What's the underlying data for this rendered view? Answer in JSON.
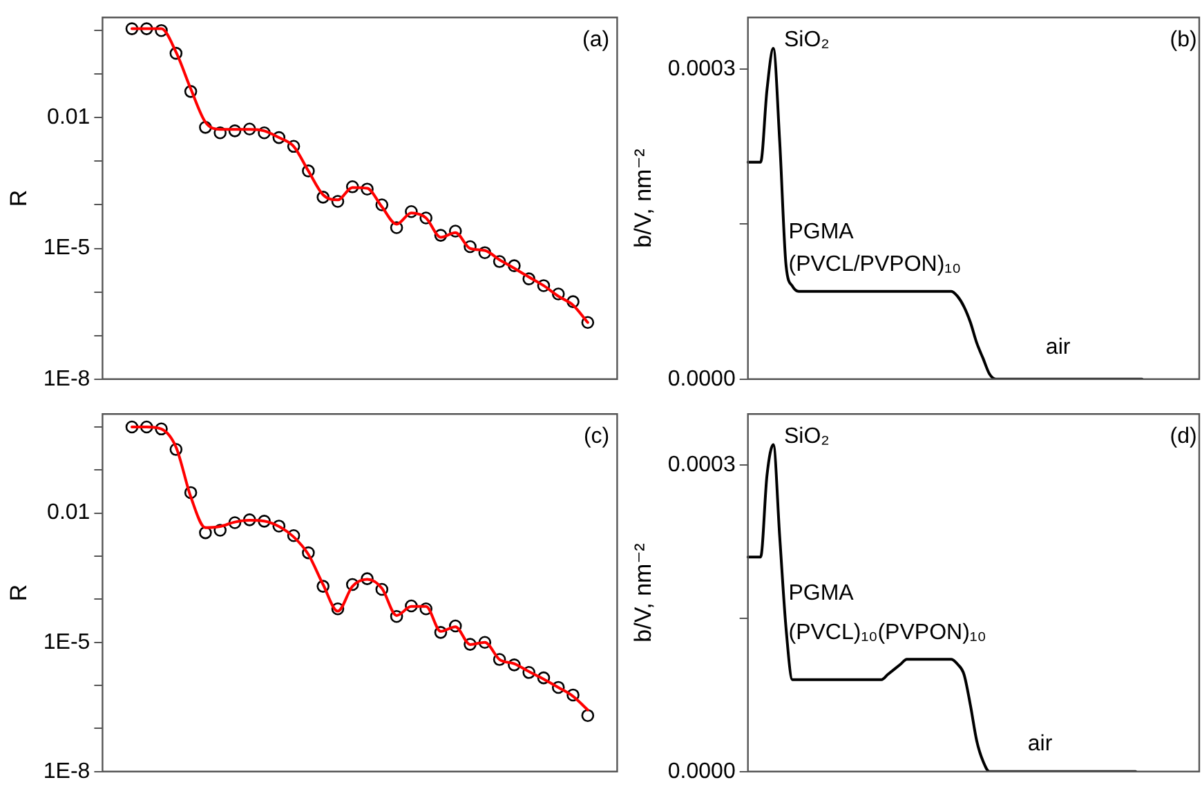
{
  "chart_data": [
    {
      "type": "scatter",
      "ylabel": "R",
      "log": "y",
      "marker": "circle",
      "tick_labels": "y",
      "annotations": [
        "(a)"
      ],
      "categories": [
        null,
        null,
        null,
        null,
        null,
        null,
        null,
        null,
        null,
        null,
        null,
        null,
        null,
        null,
        null,
        null,
        null,
        null,
        null,
        null,
        null,
        null,
        null,
        null,
        null,
        null,
        null,
        null,
        null,
        null,
        null,
        null,
        null,
        null,
        null,
        null
      ],
      "ylim": [
        1e-08,
        2
      ],
      "yticks": [
        {
          "value": 1e-08,
          "label": "1E-8"
        },
        {
          "value": 1e-07,
          "label": null
        },
        {
          "value": 1e-06,
          "label": null
        },
        {
          "value": 1e-05,
          "label": "1E-5"
        },
        {
          "value": 0.0001,
          "label": null
        },
        {
          "value": 0.001,
          "label": null
        },
        {
          "value": 0.01,
          "label": "0.01"
        },
        {
          "value": 0.1,
          "label": null
        },
        {
          "value": 1,
          "label": null
        }
      ],
      "series": [
        {
          "color": "#000000",
          "values": [
            null,
            null,
            1.1,
            1.1,
            1.0,
            0.3,
            0.04,
            0.006,
            0.0045,
            0.005,
            0.0055,
            0.0045,
            0.0035,
            0.0022,
            0.0006,
            0.00015,
            0.00012,
            0.00026,
            0.00023,
            0.0001,
            3e-05,
            7e-05,
            5e-05,
            2e-05,
            2.5e-05,
            1.1e-05,
            8e-06,
            5e-06,
            4e-06,
            2e-06,
            1.4e-06,
            9e-07,
            6e-07,
            2e-07,
            null,
            null
          ]
        },
        {
          "type": "line",
          "marker": "none",
          "color": "#ff0000",
          "values": [
            null,
            null,
            1.1,
            1.1,
            1.1,
            0.32,
            0.046,
            0.0079,
            0.0054,
            0.0054,
            0.0054,
            0.005,
            0.0035,
            0.0022,
            0.0006,
            0.00017,
            0.00013,
            0.00025,
            0.00024,
            9e-05,
            3.6e-05,
            6.5e-05,
            5e-05,
            1.8e-05,
            2.3e-05,
            1e-05,
            9e-06,
            5.5e-06,
            3.5e-06,
            2.2e-06,
            1.4e-06,
            8e-07,
            5e-07,
            2e-07,
            null,
            null
          ]
        }
      ]
    },
    {
      "type": "line",
      "ylabel": "b/V, nm⁻²",
      "marker": "none",
      "tick_labels": "y",
      "annotations": [
        "SiO₂",
        "PGMA",
        "(PVCL/PVPON)₁₀",
        "air",
        "(b)"
      ],
      "categories": [
        null,
        null,
        null,
        null,
        null,
        null,
        null,
        null,
        null,
        null,
        null,
        null,
        null,
        null,
        null,
        null,
        null,
        null,
        null,
        null,
        null,
        null,
        null,
        null,
        null,
        null,
        null,
        null,
        null,
        null,
        null,
        null,
        null,
        null,
        null,
        null,
        null,
        null,
        null,
        null,
        null,
        null,
        null,
        null,
        null,
        null,
        null,
        null,
        null,
        null,
        null,
        null,
        null,
        null,
        null,
        null,
        null,
        null,
        null,
        null,
        null,
        null,
        null,
        null,
        null,
        null,
        null,
        null,
        null,
        null,
        null,
        null
      ],
      "ylim": [
        0,
        0.00035
      ],
      "yticks": [
        {
          "value": 0,
          "label": "0.0000"
        },
        {
          "value": 0.00015,
          "label": null
        },
        {
          "value": 0.0003,
          "label": "0.0003"
        }
      ],
      "series": [
        {
          "color": "#000000",
          "values": [
            0.00021,
            0.00021,
            0.00021,
            0.00028,
            0.00032,
            0.00023,
            0.00011,
            9e-05,
            8.5e-05,
            8.5e-05,
            8.5e-05,
            8.5e-05,
            8.5e-05,
            8.5e-05,
            8.5e-05,
            8.5e-05,
            8.5e-05,
            8.5e-05,
            8.5e-05,
            8.5e-05,
            8.5e-05,
            8.5e-05,
            8.5e-05,
            8.5e-05,
            8.5e-05,
            8.5e-05,
            8.5e-05,
            8.5e-05,
            8.5e-05,
            8.5e-05,
            8.5e-05,
            8.5e-05,
            8.5e-05,
            8e-05,
            7e-05,
            5.5e-05,
            3.5e-05,
            2e-05,
            5e-06,
            0,
            0,
            0,
            0,
            0,
            0,
            0,
            0,
            0,
            0,
            0,
            0,
            0,
            0,
            0,
            0,
            0,
            0,
            0,
            0,
            0,
            0,
            0,
            0,
            null,
            null,
            null,
            null,
            null,
            null,
            null,
            null,
            null
          ]
        }
      ]
    },
    {
      "type": "scatter",
      "ylabel": "R",
      "log": "y",
      "marker": "circle",
      "tick_labels": "y",
      "annotations": [
        "(c)"
      ],
      "categories": [
        null,
        null,
        null,
        null,
        null,
        null,
        null,
        null,
        null,
        null,
        null,
        null,
        null,
        null,
        null,
        null,
        null,
        null,
        null,
        null,
        null,
        null,
        null,
        null,
        null,
        null,
        null,
        null,
        null,
        null,
        null,
        null,
        null,
        null,
        null,
        null
      ],
      "ylim": [
        1e-08,
        2
      ],
      "yticks": [
        {
          "value": 1e-08,
          "label": "1E-8"
        },
        {
          "value": 1e-07,
          "label": null
        },
        {
          "value": 1e-06,
          "label": null
        },
        {
          "value": 1e-05,
          "label": "1E-5"
        },
        {
          "value": 0.0001,
          "label": null
        },
        {
          "value": 0.001,
          "label": null
        },
        {
          "value": 0.01,
          "label": "0.01"
        },
        {
          "value": 0.1,
          "label": null
        },
        {
          "value": 1,
          "label": null
        }
      ],
      "series": [
        {
          "color": "#000000",
          "values": [
            null,
            null,
            1.0,
            1.0,
            0.9,
            0.3,
            0.03,
            0.0035,
            0.004,
            0.006,
            0.007,
            0.0065,
            0.005,
            0.003,
            0.0012,
            0.0002,
            6e-05,
            0.00022,
            0.0003,
            0.00017,
            4e-05,
            7e-05,
            6e-05,
            1.7e-05,
            2.4e-05,
            9e-06,
            1e-05,
            4e-06,
            3e-06,
            2e-06,
            1.5e-06,
            9e-07,
            6e-07,
            2e-07,
            null,
            null
          ]
        },
        {
          "type": "line",
          "marker": "none",
          "color": "#ff0000",
          "values": [
            null,
            null,
            1.0,
            1.0,
            0.9,
            0.34,
            0.024,
            0.0046,
            0.0049,
            0.0062,
            0.0068,
            0.0065,
            0.0049,
            0.0028,
            0.0011,
            0.00022,
            5.3e-05,
            0.0002,
            0.00029,
            0.00018,
            4.2e-05,
            6.8e-05,
            6.8e-05,
            1.8e-05,
            2.3e-05,
            8.9e-06,
            1e-05,
            4e-06,
            3.2e-06,
            2.1e-06,
            1.4e-06,
            9e-07,
            5.6e-07,
            2.7e-07,
            null,
            null
          ]
        }
      ]
    },
    {
      "type": "line",
      "ylabel": "b/V, nm⁻²",
      "marker": "none",
      "tick_labels": "y",
      "annotations": [
        "SiO₂",
        "PGMA",
        "(PVCL)₁₀(PVPON)₁₀",
        "air",
        "(d)"
      ],
      "categories": [
        null,
        null,
        null,
        null,
        null,
        null,
        null,
        null,
        null,
        null,
        null,
        null,
        null,
        null,
        null,
        null,
        null,
        null,
        null,
        null,
        null,
        null,
        null,
        null,
        null,
        null,
        null,
        null,
        null,
        null,
        null,
        null,
        null,
        null,
        null,
        null,
        null,
        null,
        null,
        null,
        null,
        null,
        null,
        null,
        null,
        null,
        null,
        null,
        null,
        null,
        null,
        null,
        null,
        null,
        null,
        null,
        null,
        null,
        null,
        null,
        null,
        null,
        null,
        null,
        null,
        null,
        null,
        null,
        null,
        null,
        null,
        null
      ],
      "ylim": [
        0,
        0.00035
      ],
      "yticks": [
        {
          "value": 0,
          "label": "0.0000"
        },
        {
          "value": 0.00015,
          "label": null
        },
        {
          "value": 0.0003,
          "label": "0.0003"
        }
      ],
      "series": [
        {
          "color": "#000000",
          "values": [
            0.00021,
            0.00021,
            0.00021,
            0.00029,
            0.00032,
            0.00023,
            0.00014,
            9e-05,
            9e-05,
            9e-05,
            9e-05,
            9e-05,
            9e-05,
            9e-05,
            9e-05,
            9e-05,
            9e-05,
            9e-05,
            9e-05,
            9e-05,
            9e-05,
            9e-05,
            9.5e-05,
            0.0001,
            0.000105,
            0.00011,
            0.00011,
            0.00011,
            0.00011,
            0.00011,
            0.00011,
            0.00011,
            0.00011,
            0.000105,
            9.5e-05,
            6.5e-05,
            3e-05,
            1e-05,
            0,
            0,
            0,
            0,
            0,
            0,
            0,
            0,
            0,
            0,
            0,
            0,
            0,
            0,
            0,
            0,
            0,
            0,
            0,
            0,
            0,
            0,
            0,
            0,
            null,
            null,
            null,
            null,
            null,
            null,
            null,
            null,
            null,
            null
          ]
        }
      ]
    }
  ]
}
